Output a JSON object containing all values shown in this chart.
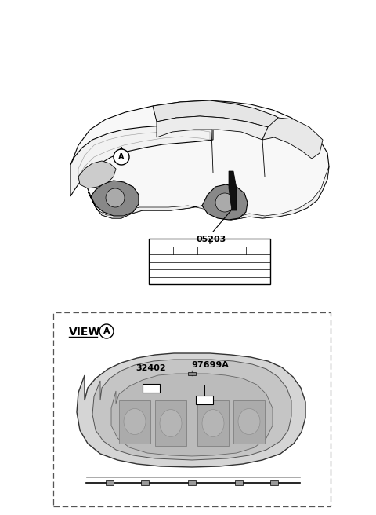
{
  "bg_color": "#ffffff",
  "line_color": "#000000",
  "light_gray": "#d8d8d8",
  "mid_gray": "#aaaaaa",
  "part_number_05203": "05203",
  "part_number_32402": "32402",
  "part_number_97699A": "97699A",
  "view_label": "VIEW",
  "circle_A": "A",
  "label_fontsize": 8,
  "small_fontsize": 7,
  "view_fontsize": 10
}
